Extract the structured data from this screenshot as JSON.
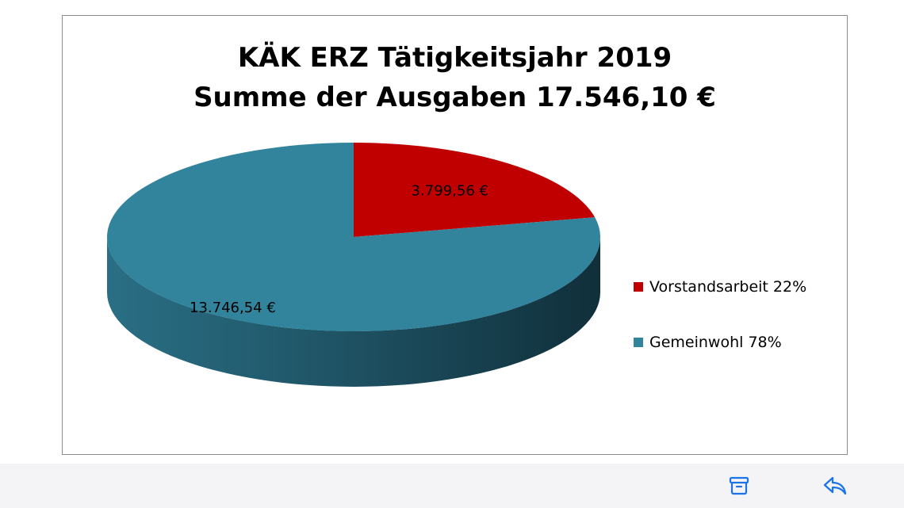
{
  "chart_data": {
    "type": "pie",
    "title_lines": [
      "KÄK ERZ Tätigkeitsjahr 2019",
      "Summe der Ausgaben 17.546,10 €"
    ],
    "slices": [
      {
        "name": "Vorstandsarbeit 22%",
        "value": 3799.56,
        "label": "3.799,56 €",
        "color": "#c00000"
      },
      {
        "name": "Gemeinwohl 78%",
        "value": 13746.54,
        "label": "13.746,54 €",
        "color": "#31849b"
      }
    ],
    "legend_position": "right",
    "style": "3d"
  },
  "toolbar": {
    "archive_icon": "archive-icon",
    "reply_icon": "reply-icon",
    "accent_color": "#1a73e8"
  }
}
